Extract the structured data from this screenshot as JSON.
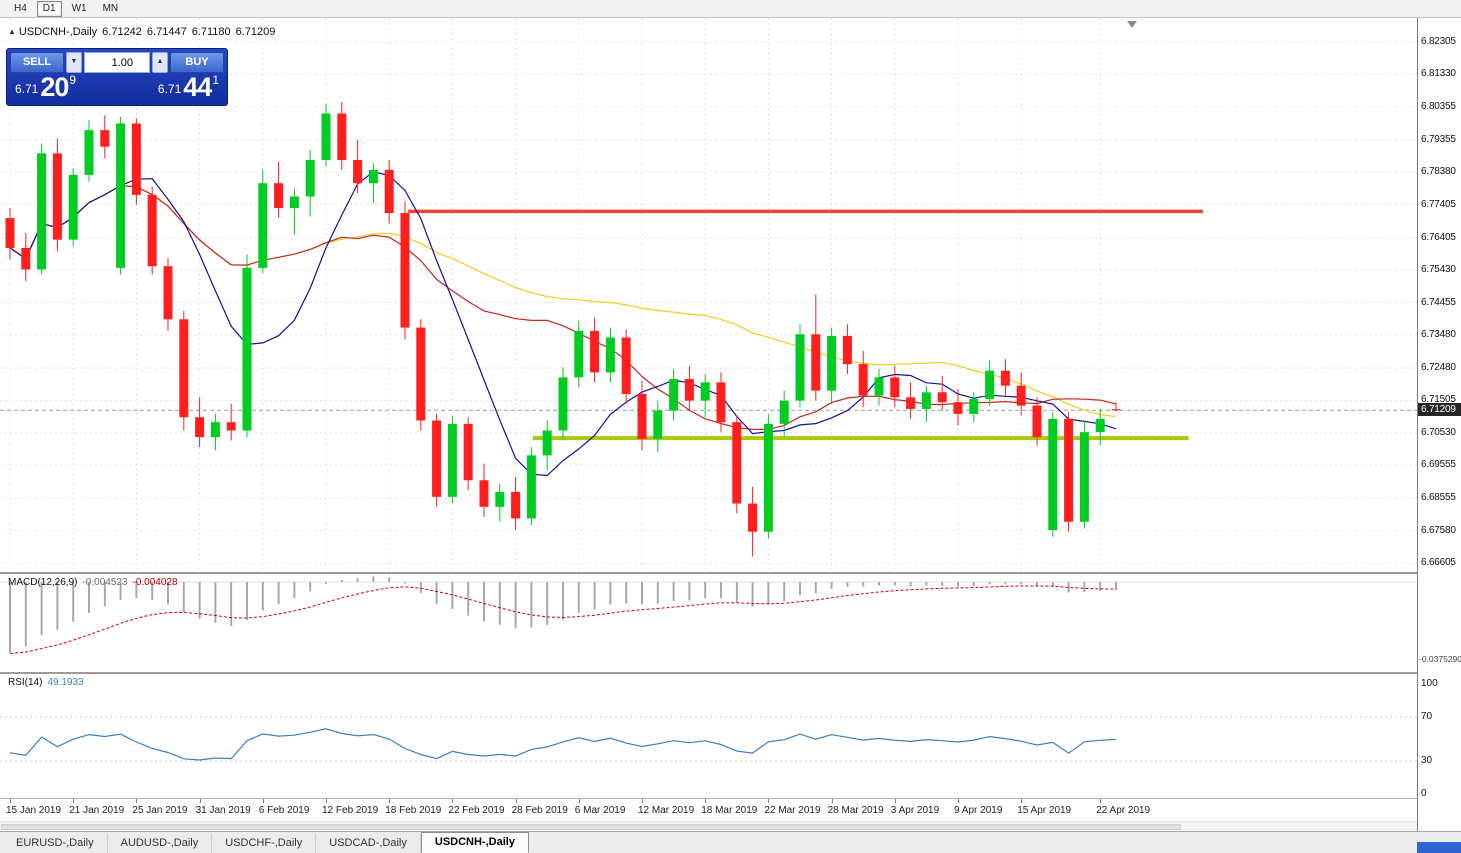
{
  "window": {
    "timeframes": [
      {
        "label": "H4",
        "active": false
      },
      {
        "label": "D1",
        "active": true
      },
      {
        "label": "W1",
        "active": false
      },
      {
        "label": "MN",
        "active": false
      }
    ]
  },
  "chart_header": {
    "symbol_line": "USDCNH-,Daily",
    "open": "6.71242",
    "high": "6.71447",
    "low": "6.71180",
    "close": "6.71209"
  },
  "trade_panel": {
    "sell_label": "SELL",
    "buy_label": "BUY",
    "volume": "1.00",
    "sell_price_small": "6.71",
    "sell_price_big": "20",
    "sell_price_sup": "9",
    "buy_price_small": "6.71",
    "buy_price_big": "44",
    "buy_price_sup": "1"
  },
  "indicators": {
    "macd": {
      "label": "MACD(12,26,9)",
      "value1": "-0.004523",
      "value2": "-0.004028",
      "axis_min_label": "-0.0375290"
    },
    "rsi": {
      "label": "RSI(14)",
      "value": "49.1933",
      "axis_labels": [
        "100",
        "70",
        "30",
        "0"
      ]
    }
  },
  "price_axis": {
    "current_price": "6.71209"
  },
  "bottom_tabs": [
    {
      "label": "EURUSD-,Daily",
      "active": false
    },
    {
      "label": "AUDUSD-,Daily",
      "active": false
    },
    {
      "label": "USDCHF-,Daily",
      "active": false
    },
    {
      "label": "USDCAD-,Daily",
      "active": false
    },
    {
      "label": "USDCNH-,Daily",
      "active": true
    }
  ],
  "chart_data": {
    "type": "candlestick",
    "symbol": "USDCNH-",
    "timeframe": "Daily",
    "ylim": [
      6.66336,
      6.83028
    ],
    "price_axis_labels": [
      "6.82305",
      "6.81330",
      "6.80355",
      "6.79355",
      "6.78380",
      "6.77405",
      "6.76405",
      "6.75430",
      "6.74455",
      "6.73480",
      "6.72480",
      "6.71505",
      "6.70530",
      "6.69555",
      "6.68555",
      "6.67580",
      "6.66605"
    ],
    "dates": [
      "2019-01-15",
      "2019-01-16",
      "2019-01-17",
      "2019-01-18",
      "2019-01-21",
      "2019-01-22",
      "2019-01-23",
      "2019-01-24",
      "2019-01-25",
      "2019-01-28",
      "2019-01-29",
      "2019-01-30",
      "2019-01-31",
      "2019-02-01",
      "2019-02-04",
      "2019-02-05",
      "2019-02-06",
      "2019-02-07",
      "2019-02-08",
      "2019-02-11",
      "2019-02-12",
      "2019-02-13",
      "2019-02-14",
      "2019-02-15",
      "2019-02-18",
      "2019-02-19",
      "2019-02-20",
      "2019-02-21",
      "2019-02-22",
      "2019-02-25",
      "2019-02-26",
      "2019-02-27",
      "2019-02-28",
      "2019-03-01",
      "2019-03-04",
      "2019-03-05",
      "2019-03-06",
      "2019-03-07",
      "2019-03-08",
      "2019-03-11",
      "2019-03-12",
      "2019-03-13",
      "2019-03-14",
      "2019-03-15",
      "2019-03-18",
      "2019-03-19",
      "2019-03-20",
      "2019-03-21",
      "2019-03-22",
      "2019-03-25",
      "2019-03-26",
      "2019-03-27",
      "2019-03-28",
      "2019-03-29",
      "2019-04-01",
      "2019-04-02",
      "2019-04-03",
      "2019-04-04",
      "2019-04-05",
      "2019-04-08",
      "2019-04-09",
      "2019-04-10",
      "2019-04-11",
      "2019-04-12",
      "2019-04-15",
      "2019-04-16",
      "2019-04-17",
      "2019-04-18",
      "2019-04-19",
      "2019-04-22",
      "2019-04-23"
    ],
    "ohlc": [
      [
        6.77,
        6.773,
        6.7575,
        6.761
      ],
      [
        6.761,
        6.7655,
        6.751,
        6.7545
      ],
      [
        6.7545,
        6.7925,
        6.753,
        6.7895
      ],
      [
        6.7895,
        6.794,
        6.76,
        6.7635
      ],
      [
        6.7635,
        6.785,
        6.7615,
        6.783
      ],
      [
        6.783,
        6.7995,
        6.781,
        6.7965
      ],
      [
        6.7965,
        6.801,
        6.788,
        6.7915
      ],
      [
        6.755,
        6.8005,
        6.753,
        6.7985
      ],
      [
        6.7985,
        6.8,
        6.774,
        6.777
      ],
      [
        6.777,
        6.7795,
        6.753,
        6.7555
      ],
      [
        6.7555,
        6.758,
        6.736,
        6.7395
      ],
      [
        6.7395,
        6.742,
        6.706,
        6.71
      ],
      [
        6.71,
        6.716,
        6.701,
        6.704
      ],
      [
        6.704,
        6.711,
        6.7,
        6.7085
      ],
      [
        6.7085,
        6.714,
        6.703,
        6.706
      ],
      [
        6.706,
        6.759,
        6.704,
        6.755
      ],
      [
        6.755,
        6.7845,
        6.7535,
        6.7805
      ],
      [
        6.7805,
        6.787,
        6.77,
        6.773
      ],
      [
        6.773,
        6.779,
        6.765,
        6.7765
      ],
      [
        6.7765,
        6.7905,
        6.7705,
        6.7875
      ],
      [
        6.7875,
        6.8045,
        6.7855,
        6.8015
      ],
      [
        6.8015,
        6.805,
        6.7845,
        6.7875
      ],
      [
        6.7875,
        6.7935,
        6.7775,
        6.7805
      ],
      [
        6.7805,
        6.7865,
        6.7745,
        6.7845
      ],
      [
        6.7845,
        6.7875,
        6.7685,
        6.7715
      ],
      [
        6.7715,
        6.775,
        6.7335,
        6.737
      ],
      [
        6.737,
        6.7395,
        6.706,
        6.709
      ],
      [
        6.709,
        6.711,
        6.683,
        6.686
      ],
      [
        6.686,
        6.7105,
        6.684,
        6.708
      ],
      [
        6.708,
        6.71,
        6.688,
        6.691
      ],
      [
        6.691,
        6.696,
        6.68,
        6.683
      ],
      [
        6.683,
        6.69,
        6.6785,
        6.6875
      ],
      [
        6.6875,
        6.692,
        6.676,
        6.6795
      ],
      [
        6.6795,
        6.701,
        6.6775,
        6.6985
      ],
      [
        6.6985,
        6.709,
        6.694,
        6.706
      ],
      [
        6.706,
        6.725,
        6.703,
        6.722
      ],
      [
        6.722,
        6.739,
        6.719,
        6.736
      ],
      [
        6.736,
        6.74,
        6.7205,
        6.7235
      ],
      [
        6.7235,
        6.737,
        6.7205,
        6.734
      ],
      [
        6.734,
        6.7365,
        6.714,
        6.717
      ],
      [
        6.717,
        6.721,
        6.7,
        6.7035
      ],
      [
        6.7035,
        6.715,
        6.6995,
        6.712
      ],
      [
        6.712,
        6.7245,
        6.709,
        6.7215
      ],
      [
        6.7215,
        6.7255,
        6.712,
        6.715
      ],
      [
        6.715,
        6.723,
        6.71,
        6.7205
      ],
      [
        6.7205,
        6.7235,
        6.7055,
        6.7085
      ],
      [
        6.7085,
        6.7105,
        6.681,
        6.684
      ],
      [
        6.684,
        6.689,
        6.668,
        6.6755
      ],
      [
        6.6755,
        6.711,
        6.6735,
        6.708
      ],
      [
        6.708,
        6.718,
        6.704,
        6.715
      ],
      [
        6.715,
        6.738,
        6.713,
        6.735
      ],
      [
        6.735,
        6.747,
        6.715,
        6.718
      ],
      [
        6.718,
        6.737,
        6.714,
        6.7345
      ],
      [
        6.7345,
        6.738,
        6.723,
        6.726
      ],
      [
        6.726,
        6.73,
        6.713,
        6.7165
      ],
      [
        6.7165,
        6.7245,
        6.7135,
        6.722
      ],
      [
        6.722,
        6.7255,
        6.713,
        6.716
      ],
      [
        6.716,
        6.7205,
        6.7095,
        6.7125
      ],
      [
        6.7125,
        6.7195,
        6.7085,
        6.7175
      ],
      [
        6.7175,
        6.7225,
        6.712,
        6.7145
      ],
      [
        6.7145,
        6.7185,
        6.7075,
        6.711
      ],
      [
        6.711,
        6.7175,
        6.7085,
        6.7155
      ],
      [
        6.7155,
        6.727,
        6.7135,
        6.724
      ],
      [
        6.724,
        6.7275,
        6.7165,
        6.7195
      ],
      [
        6.7195,
        6.7235,
        6.7105,
        6.7135
      ],
      [
        6.7135,
        6.716,
        6.7015,
        6.704
      ],
      [
        6.676,
        6.7115,
        6.674,
        6.7095
      ],
      [
        6.7095,
        6.7115,
        6.6755,
        6.6785
      ],
      [
        6.6785,
        6.709,
        6.6765,
        6.7055
      ],
      [
        6.7055,
        6.7125,
        6.7015,
        6.7095
      ],
      [
        6.71242,
        6.71447,
        6.7118,
        6.71209
      ]
    ],
    "date_ticks": [
      {
        "i": 0,
        "label": "15 Jan 2019"
      },
      {
        "i": 4,
        "label": "21 Jan 2019"
      },
      {
        "i": 8,
        "label": "25 Jan 2019"
      },
      {
        "i": 12,
        "label": "31 Jan 2019"
      },
      {
        "i": 16,
        "label": "6 Feb 2019"
      },
      {
        "i": 20,
        "label": "12 Feb 2019"
      },
      {
        "i": 24,
        "label": "18 Feb 2019"
      },
      {
        "i": 28,
        "label": "22 Feb 2019"
      },
      {
        "i": 32,
        "label": "28 Feb 2019"
      },
      {
        "i": 36,
        "label": "6 Mar 2019"
      },
      {
        "i": 40,
        "label": "12 Mar 2019"
      },
      {
        "i": 44,
        "label": "18 Mar 2019"
      },
      {
        "i": 48,
        "label": "22 Mar 2019"
      },
      {
        "i": 52,
        "label": "28 Mar 2019"
      },
      {
        "i": 56,
        "label": "3 Apr 2019"
      },
      {
        "i": 60,
        "label": "9 Apr 2019"
      },
      {
        "i": 64,
        "label": "15 Apr 2019"
      },
      {
        "i": 69,
        "label": "22 Apr 2019"
      }
    ],
    "current_price": 6.71209,
    "moving_averages": [
      {
        "period": 8,
        "color": "#12129b"
      },
      {
        "period": 20,
        "color": "#c4281e"
      },
      {
        "period": 45,
        "color": "#f2cd1c"
      }
    ],
    "hlines": [
      {
        "name": "resistance-line",
        "price": 6.772,
        "i1": 25.2,
        "i2": 75.5,
        "color": "#ef4538",
        "width": 3.5
      },
      {
        "name": "support-line",
        "price": 6.7037,
        "i1": 33.1,
        "i2": 74.6,
        "color": "#abc90a",
        "width": 4
      }
    ],
    "colors": {
      "up": "#00cc21",
      "down": "#ff1f1f",
      "grid": "#e4e4e4",
      "macd_hist": "#a8a8a8",
      "macd_signal": "#d40000",
      "rsi_line": "#3c7ebf"
    },
    "macd": {
      "fast": 12,
      "slow": 26,
      "signal": 9,
      "current": -0.004523,
      "current_signal": -0.004028,
      "scale_min": -0.037529,
      "seed_fast_offset": -0.015,
      "seed_slow_offset": 0.023,
      "seed_signal": -0.0345
    },
    "rsi": {
      "period": 14,
      "current": 49.1933,
      "levels": [
        70,
        30
      ],
      "seed_avg_gain": 0.003,
      "seed_avg_loss": 0.005
    }
  }
}
